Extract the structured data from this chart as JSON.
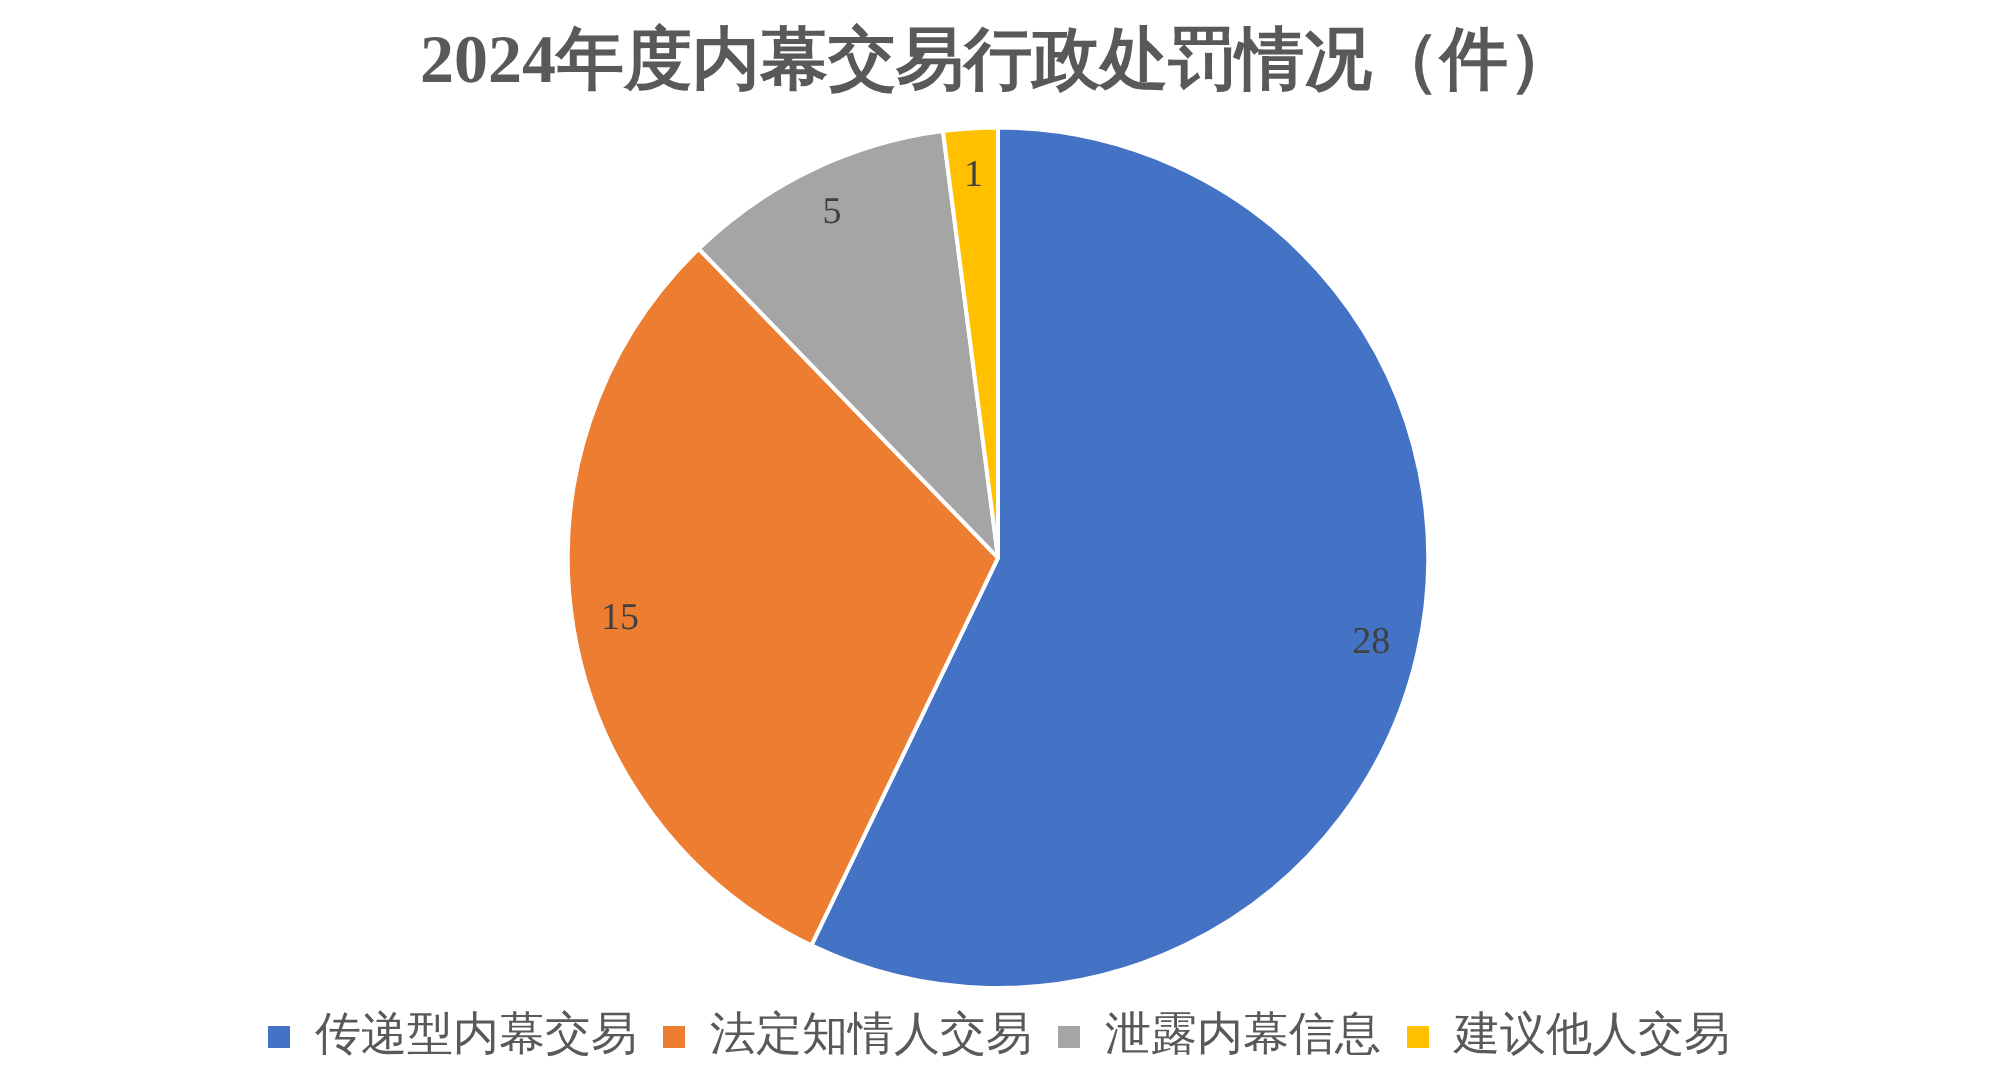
{
  "chart_data": {
    "type": "pie",
    "title": "2024年度内幕交易行政处罚情况（件）",
    "categories": [
      "传递型内幕交易",
      "法定知情人交易",
      "泄露内幕信息",
      "建议他人交易"
    ],
    "values": [
      28,
      15,
      5,
      1
    ],
    "colors": [
      "#4472c4",
      "#ed7d31",
      "#a5a5a5",
      "#ffc000"
    ],
    "data_labels": true,
    "legend": "bottom"
  }
}
